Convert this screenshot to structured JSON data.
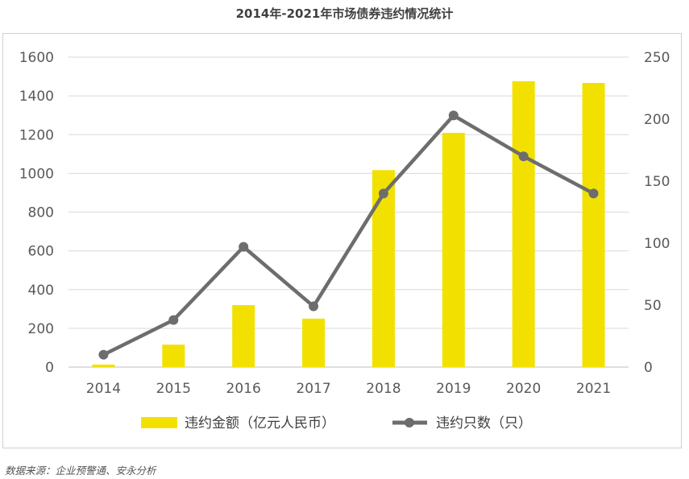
{
  "page": {
    "title": "2014年-2021年市场债券违约情况统计",
    "source": "数据来源：企业预警通、安永分析"
  },
  "chart_data": {
    "type": "bar",
    "categories": [
      "2014",
      "2015",
      "2016",
      "2017",
      "2018",
      "2019",
      "2020",
      "2021"
    ],
    "series": [
      {
        "name": "违约金额（亿元人民币）",
        "type": "bar",
        "axis": "left",
        "color": "#f2e100",
        "values": [
          13,
          116,
          320,
          250,
          1017,
          1209,
          1476,
          1467
        ]
      },
      {
        "name": "违约只数（只）",
        "type": "line",
        "axis": "right",
        "color": "#6d6d6d",
        "values": [
          10,
          38,
          97,
          49,
          140,
          203,
          170,
          140
        ]
      }
    ],
    "y_left": {
      "ylim": [
        0,
        1600
      ],
      "ticks": [
        "0",
        "200",
        "400",
        "600",
        "800",
        "1000",
        "1200",
        "1400",
        "1600"
      ]
    },
    "y_right": {
      "ylim": [
        0,
        250
      ],
      "ticks": [
        "0",
        "50",
        "100",
        "150",
        "200",
        "250"
      ]
    },
    "grid": true,
    "legend_position": "bottom"
  }
}
